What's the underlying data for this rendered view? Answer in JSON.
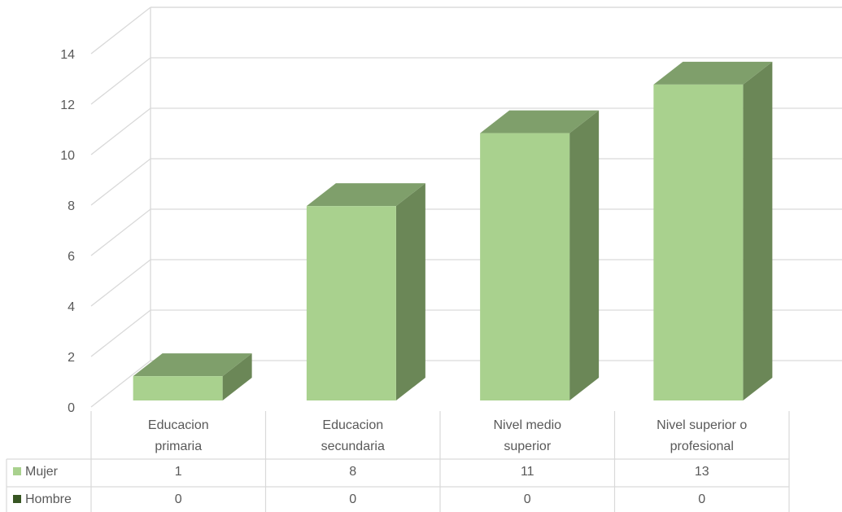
{
  "chart_data": {
    "type": "bar",
    "style": "3d-column-with-data-table",
    "categories": [
      [
        "Educacion",
        "primaria"
      ],
      [
        "Educacion",
        "secundaria"
      ],
      [
        "Nivel medio",
        "superior"
      ],
      [
        "Nivel superior o",
        "profesional"
      ]
    ],
    "series": [
      {
        "name": "Mujer",
        "values": [
          1,
          8,
          11,
          13
        ],
        "color": "#a9d18e",
        "top_color": "#7f9f6b",
        "side_color": "#6b8757"
      },
      {
        "name": "Hombre",
        "values": [
          0,
          0,
          0,
          0
        ],
        "color": "#375623"
      }
    ],
    "ylim": [
      0,
      14
    ],
    "yticks": [
      0,
      2,
      4,
      6,
      8,
      10,
      12,
      14
    ],
    "grid": true,
    "legend": "data-table-left"
  },
  "colors": {
    "gridline": "#d9d9d9",
    "text": "#595959",
    "table_border": "#d9d9d9"
  }
}
